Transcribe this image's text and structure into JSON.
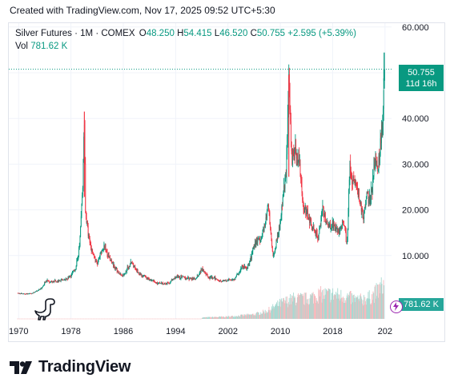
{
  "header": {
    "created_text": "Created with TradingView.com, Nov 17, 2025 09:52 UTC+5:30"
  },
  "legend": {
    "symbol": "Silver Futures · 1M · COMEX",
    "open_label": "O",
    "open": "48.250",
    "high_label": "H",
    "high": "54.415",
    "low_label": "L",
    "low": "46.520",
    "close_label": "C",
    "close": "50.755",
    "change": "+2.595 (+5.39%)",
    "vol_label": "Vol",
    "vol": "781.62 K"
  },
  "price_tag": {
    "price": "50.755",
    "countdown": "11d 16h"
  },
  "vol_tag": {
    "value": "781.62 K"
  },
  "footer": {
    "brand": "TradingView"
  },
  "colors": {
    "up": "#089981",
    "down": "#f23645",
    "vol_up": "#a6d9d1",
    "vol_down": "#f5b8bc",
    "grid": "#f0f3fa"
  },
  "chart_data": {
    "type": "candlestick",
    "title": "Silver Futures · 1M · COMEX",
    "x_ticks": [
      "1970",
      "1978",
      "1986",
      "1994",
      "2002",
      "2010",
      "2018",
      "202"
    ],
    "y_ticks": [
      "10.000",
      "20.000",
      "30.000",
      "40.000",
      "50.000",
      "60.000"
    ],
    "ylim": [
      0,
      60
    ],
    "xlim": [
      1968.5,
      2027
    ],
    "last_price": 50.755,
    "price_series": [
      [
        1969.8,
        1.8
      ],
      [
        1971.0,
        1.6
      ],
      [
        1972.0,
        1.7
      ],
      [
        1973.5,
        2.8
      ],
      [
        1974.2,
        4.5
      ],
      [
        1975.0,
        4.3
      ],
      [
        1976.0,
        4.4
      ],
      [
        1977.0,
        4.6
      ],
      [
        1978.0,
        5.6
      ],
      [
        1978.8,
        7.5
      ],
      [
        1979.3,
        12
      ],
      [
        1979.8,
        25
      ],
      [
        1980.05,
        41
      ],
      [
        1980.2,
        20
      ],
      [
        1980.6,
        15
      ],
      [
        1981.0,
        12
      ],
      [
        1982.0,
        8
      ],
      [
        1983.0,
        12
      ],
      [
        1983.5,
        11
      ],
      [
        1984.0,
        9
      ],
      [
        1985.0,
        6.5
      ],
      [
        1986.0,
        5.6
      ],
      [
        1987.3,
        8.5
      ],
      [
        1988.0,
        6.6
      ],
      [
        1989.0,
        5.5
      ],
      [
        1990.0,
        4.8
      ],
      [
        1991.0,
        4.0
      ],
      [
        1992.0,
        3.8
      ],
      [
        1993.0,
        4.0
      ],
      [
        1994.0,
        5.3
      ],
      [
        1995.0,
        5.2
      ],
      [
        1996.0,
        5.0
      ],
      [
        1997.0,
        4.8
      ],
      [
        1998.1,
        7.2
      ],
      [
        1999.0,
        5.2
      ],
      [
        2000.0,
        5.0
      ],
      [
        2001.0,
        4.4
      ],
      [
        2002.0,
        4.6
      ],
      [
        2003.0,
        4.9
      ],
      [
        2004.2,
        7.5
      ],
      [
        2005.0,
        7.2
      ],
      [
        2006.3,
        13.5
      ],
      [
        2007.0,
        13.5
      ],
      [
        2008.2,
        20.5
      ],
      [
        2008.9,
        9.5
      ],
      [
        2009.5,
        14
      ],
      [
        2010.0,
        17
      ],
      [
        2010.9,
        29
      ],
      [
        2011.3,
        48
      ],
      [
        2011.8,
        31
      ],
      [
        2012.3,
        33
      ],
      [
        2013.0,
        30
      ],
      [
        2013.5,
        20
      ],
      [
        2014.0,
        20
      ],
      [
        2015.0,
        16
      ],
      [
        2015.8,
        14
      ],
      [
        2016.5,
        20.5
      ],
      [
        2017.0,
        17
      ],
      [
        2018.0,
        16.5
      ],
      [
        2019.0,
        15
      ],
      [
        2019.7,
        18
      ],
      [
        2020.2,
        12
      ],
      [
        2020.6,
        29
      ],
      [
        2021.0,
        27
      ],
      [
        2021.5,
        26
      ],
      [
        2022.0,
        23
      ],
      [
        2022.7,
        18
      ],
      [
        2023.2,
        24
      ],
      [
        2023.8,
        22
      ],
      [
        2024.4,
        30
      ],
      [
        2024.9,
        29
      ],
      [
        2025.2,
        33
      ],
      [
        2025.7,
        40
      ],
      [
        2025.88,
        50.755
      ]
    ],
    "volume_series": [
      [
        1998.0,
        0.03
      ],
      [
        2002.0,
        0.05
      ],
      [
        2006.0,
        0.1
      ],
      [
        2008.0,
        0.18
      ],
      [
        2010.0,
        0.35
      ],
      [
        2012.0,
        0.45
      ],
      [
        2014.0,
        0.45
      ],
      [
        2016.0,
        0.55
      ],
      [
        2018.0,
        0.55
      ],
      [
        2020.0,
        0.5
      ],
      [
        2022.0,
        0.42
      ],
      [
        2024.0,
        0.5
      ],
      [
        2025.8,
        0.78
      ]
    ],
    "volume_max_ratio_note": "relative volume, peak = 1"
  }
}
